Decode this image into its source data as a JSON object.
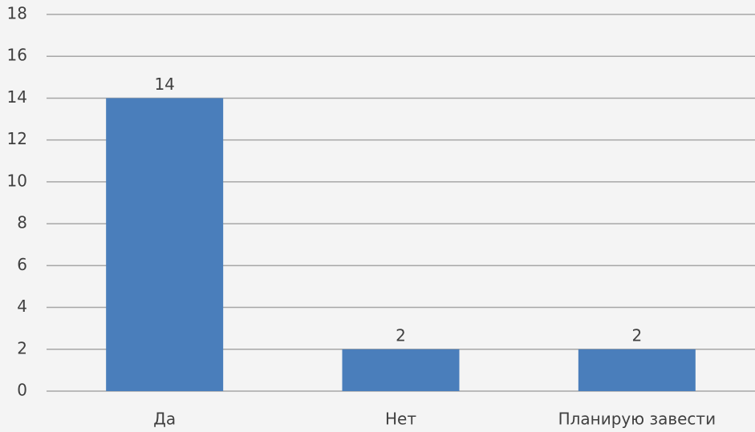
{
  "chart_data": {
    "type": "bar",
    "categories": [
      "Да",
      "Нет",
      "Планирую завести"
    ],
    "values": [
      14,
      2,
      2
    ],
    "color": "#4a7ebb",
    "ylim": [
      0,
      18
    ],
    "yticks": [
      0,
      2,
      4,
      6,
      8,
      10,
      12,
      14,
      16,
      18
    ],
    "grid": true
  }
}
